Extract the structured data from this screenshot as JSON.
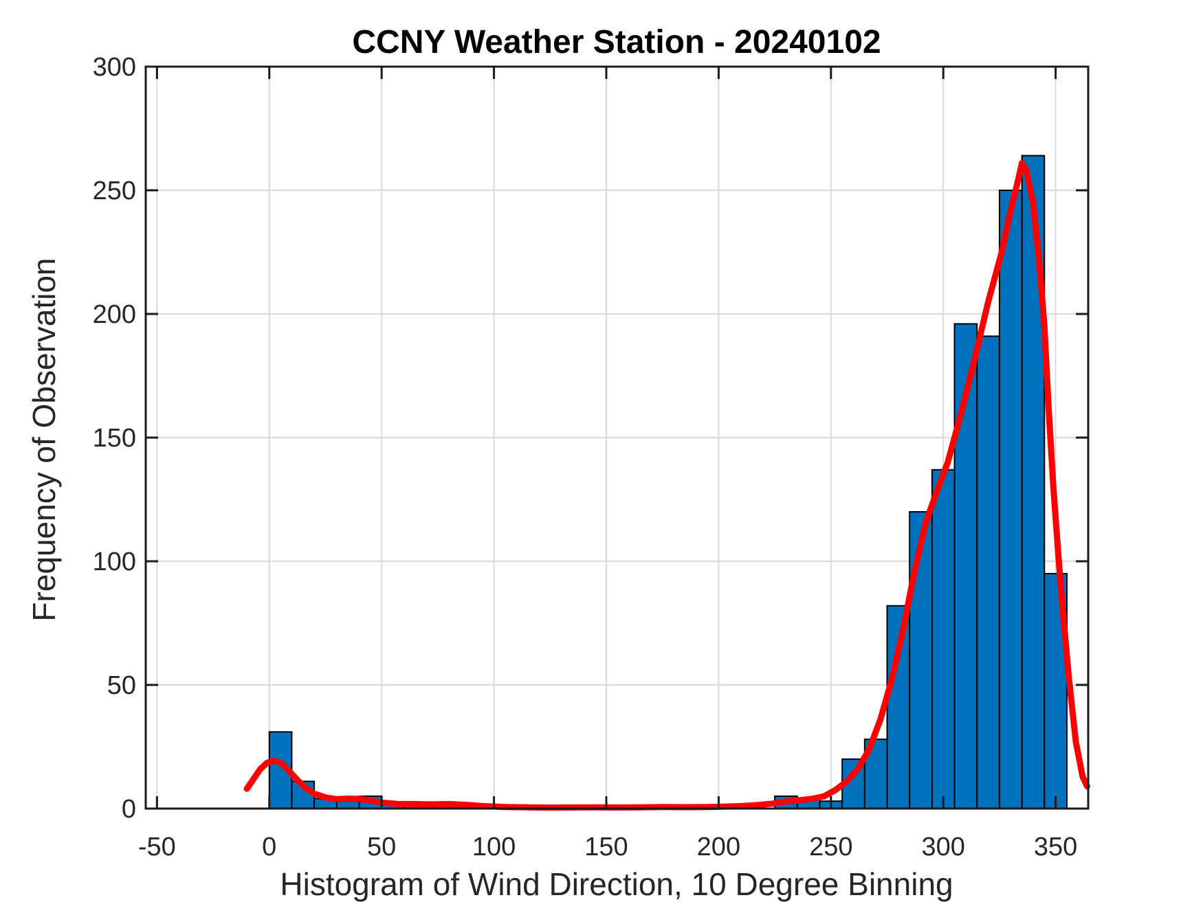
{
  "chart_data": {
    "type": "bar",
    "subtype": "histogram_with_fit_curve",
    "title": "CCNY Weather Station - 20240102",
    "xlabel": "Histogram of Wind Direction, 10 Degree Binning",
    "ylabel": "Frequency of Observation",
    "xlim": [
      -55,
      364.5
    ],
    "ylim": [
      0,
      300
    ],
    "xticks": [
      -50,
      0,
      50,
      100,
      150,
      200,
      250,
      300,
      350
    ],
    "yticks": [
      0,
      50,
      100,
      150,
      200,
      250,
      300
    ],
    "grid": true,
    "legend": "none",
    "bar_color": "#0072BD",
    "bar_edge_color": "#000000",
    "fit_line_color": "#FF0000",
    "grid_color": "#d9d9d9",
    "axis_color": "#1a1a1a",
    "bin_width": 10,
    "bins": [
      {
        "start": 0,
        "count": 31
      },
      {
        "start": 10,
        "count": 11
      },
      {
        "start": 20,
        "count": 4
      },
      {
        "start": 30,
        "count": 3
      },
      {
        "start": 40,
        "count": 5
      },
      {
        "start": 50,
        "count": 2
      },
      {
        "start": 60,
        "count": 1
      },
      {
        "start": 70,
        "count": 1
      },
      {
        "start": 80,
        "count": 1
      },
      {
        "start": 210,
        "count": 1
      },
      {
        "start": 225,
        "count": 5
      },
      {
        "start": 235,
        "count": 4
      },
      {
        "start": 245,
        "count": 3
      },
      {
        "start": 255,
        "count": 20
      },
      {
        "start": 265,
        "count": 28
      },
      {
        "start": 275,
        "count": 82
      },
      {
        "start": 285,
        "count": 120
      },
      {
        "start": 295,
        "count": 137
      },
      {
        "start": 305,
        "count": 196
      },
      {
        "start": 315,
        "count": 191
      },
      {
        "start": 325,
        "count": 250
      },
      {
        "start": 335,
        "count": 264
      },
      {
        "start": 345,
        "count": 95
      }
    ],
    "fit_curve": {
      "points": [
        [
          -10,
          8
        ],
        [
          -7,
          12
        ],
        [
          -4,
          16
        ],
        [
          -1,
          18.5
        ],
        [
          2,
          19.3
        ],
        [
          5,
          18.6
        ],
        [
          8,
          16
        ],
        [
          12,
          12
        ],
        [
          16,
          8.5
        ],
        [
          20,
          6
        ],
        [
          25,
          4.5
        ],
        [
          30,
          3.8
        ],
        [
          35,
          4.0
        ],
        [
          40,
          3.9
        ],
        [
          45,
          3.2
        ],
        [
          50,
          2.4
        ],
        [
          57,
          1.9
        ],
        [
          65,
          1.8
        ],
        [
          72,
          1.7
        ],
        [
          80,
          1.8
        ],
        [
          88,
          1.5
        ],
        [
          95,
          1.0
        ],
        [
          105,
          0.6
        ],
        [
          115,
          0.5
        ],
        [
          125,
          0.4
        ],
        [
          135,
          0.45
        ],
        [
          145,
          0.5
        ],
        [
          155,
          0.45
        ],
        [
          165,
          0.5
        ],
        [
          175,
          0.6
        ],
        [
          185,
          0.55
        ],
        [
          195,
          0.6
        ],
        [
          203,
          0.8
        ],
        [
          210,
          1.0
        ],
        [
          217,
          1.4
        ],
        [
          224,
          2.0
        ],
        [
          230,
          2.8
        ],
        [
          236,
          3.4
        ],
        [
          242,
          4.0
        ],
        [
          247,
          5.0
        ],
        [
          252,
          7.5
        ],
        [
          257,
          11
        ],
        [
          262,
          16
        ],
        [
          267,
          24
        ],
        [
          272,
          36
        ],
        [
          277,
          52
        ],
        [
          282,
          72
        ],
        [
          287,
          95
        ],
        [
          292,
          115
        ],
        [
          297,
          128
        ],
        [
          302,
          140
        ],
        [
          308,
          160
        ],
        [
          314,
          182
        ],
        [
          320,
          205
        ],
        [
          326,
          225
        ],
        [
          330,
          242
        ],
        [
          333,
          253
        ],
        [
          335,
          261
        ],
        [
          337,
          258
        ],
        [
          340,
          245
        ],
        [
          343,
          218
        ],
        [
          345,
          195
        ],
        [
          347,
          160
        ],
        [
          349,
          130
        ],
        [
          351,
          105
        ],
        [
          353,
          82
        ],
        [
          356,
          52
        ],
        [
          359,
          27
        ],
        [
          362,
          13
        ],
        [
          364,
          9
        ]
      ]
    }
  }
}
